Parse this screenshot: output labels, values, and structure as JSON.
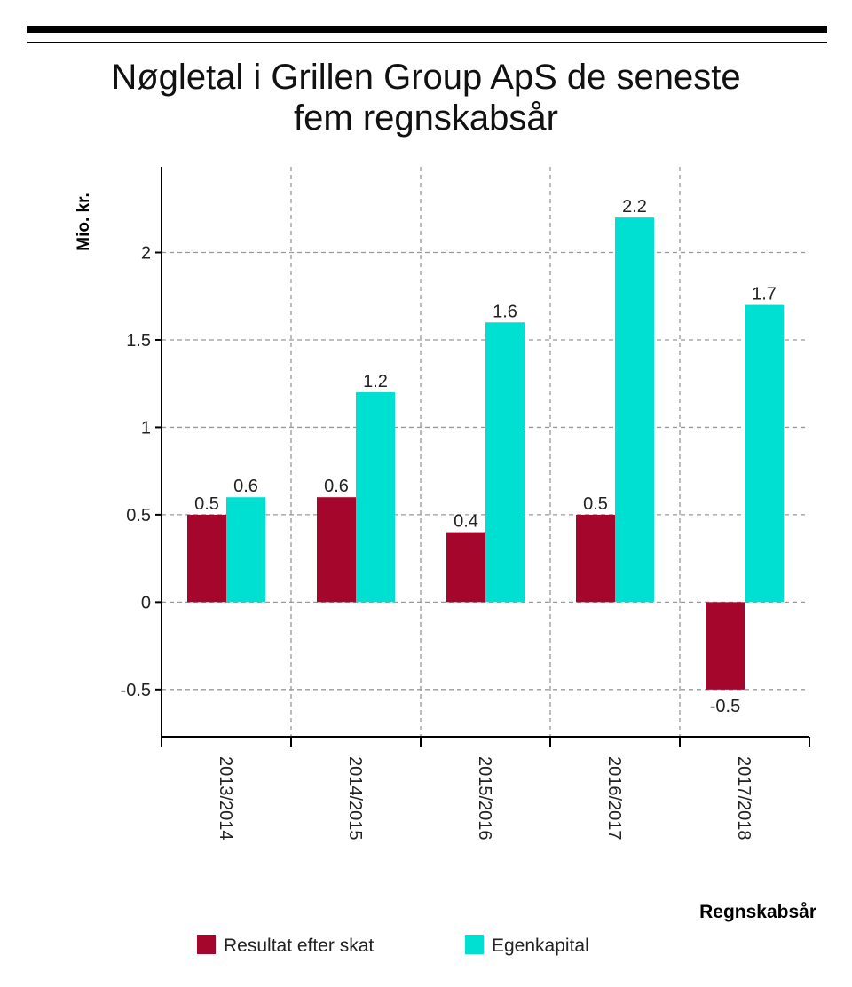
{
  "chart_data": {
    "type": "bar",
    "title_lines": [
      "Nøgletal i Grillen Group ApS de seneste",
      "fem regnskabsår"
    ],
    "xlabel": "Regnskabsår",
    "ylabel": "Mio. kr.",
    "categories": [
      "2013/2014",
      "2014/2015",
      "2015/2016",
      "2016/2017",
      "2017/2018"
    ],
    "series": [
      {
        "name": "Resultat efter skat",
        "color": "#a5062b",
        "values": [
          0.5,
          0.6,
          0.4,
          0.5,
          -0.5
        ],
        "labels": [
          "0.5",
          "0.6",
          "0.4",
          "0.5",
          "-0.5"
        ]
      },
      {
        "name": "Egenkapital",
        "color": "#00e0d2",
        "values": [
          0.6,
          1.2,
          1.6,
          2.2,
          1.7
        ],
        "labels": [
          "0.6",
          "1.2",
          "1.6",
          "2.2",
          "1.7"
        ]
      }
    ],
    "ylim": [
      -0.77,
      2.49
    ],
    "yticks": [
      -0.5,
      0,
      0.5,
      1,
      1.5,
      2
    ],
    "ytick_labels": [
      "-0.5",
      "0",
      "0.5",
      "1",
      "1.5",
      "2"
    ],
    "grid": true,
    "legend_position": "bottom-left"
  }
}
